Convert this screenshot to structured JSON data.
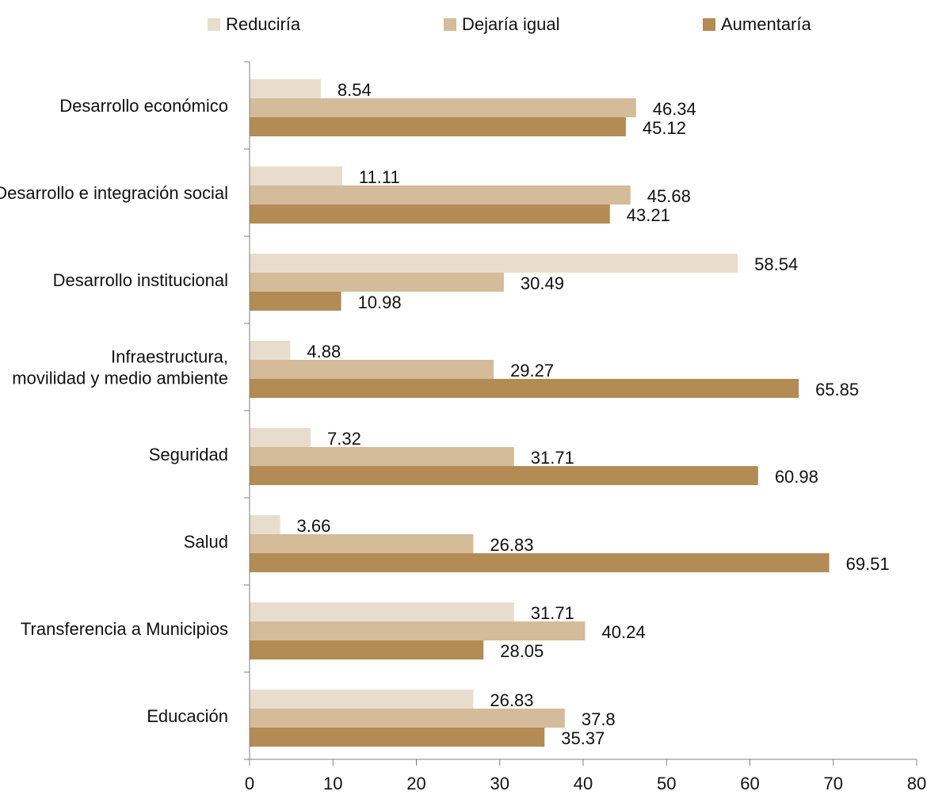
{
  "chart_data": {
    "type": "bar",
    "orientation": "horizontal",
    "categories": [
      "Desarrollo económico",
      "Desarrollo e integración social",
      "Desarrollo institucional",
      "Infraestructura, movilidad y medio ambiente",
      "Seguridad",
      "Salud",
      "Transferencia a Municipios",
      "Educación"
    ],
    "series": [
      {
        "name": "Reduciría",
        "color": "#e8ddcd",
        "values": [
          8.54,
          11.11,
          58.54,
          4.88,
          7.32,
          3.66,
          31.71,
          26.83
        ]
      },
      {
        "name": "Dejaría igual",
        "color": "#d4bb99",
        "values": [
          46.34,
          45.68,
          30.49,
          29.27,
          31.71,
          26.83,
          40.24,
          37.8
        ]
      },
      {
        "name": "Aumentaría",
        "color": "#b38b55",
        "values": [
          45.12,
          43.21,
          10.98,
          65.85,
          60.98,
          69.51,
          28.05,
          35.37
        ]
      }
    ],
    "xlim": [
      0,
      80
    ],
    "xticks": [
      "0",
      "10",
      "20",
      "30",
      "40",
      "50",
      "60",
      "70",
      "80"
    ],
    "title": "",
    "xlabel": "",
    "ylabel": "",
    "legend_position": "top",
    "grid": false
  }
}
